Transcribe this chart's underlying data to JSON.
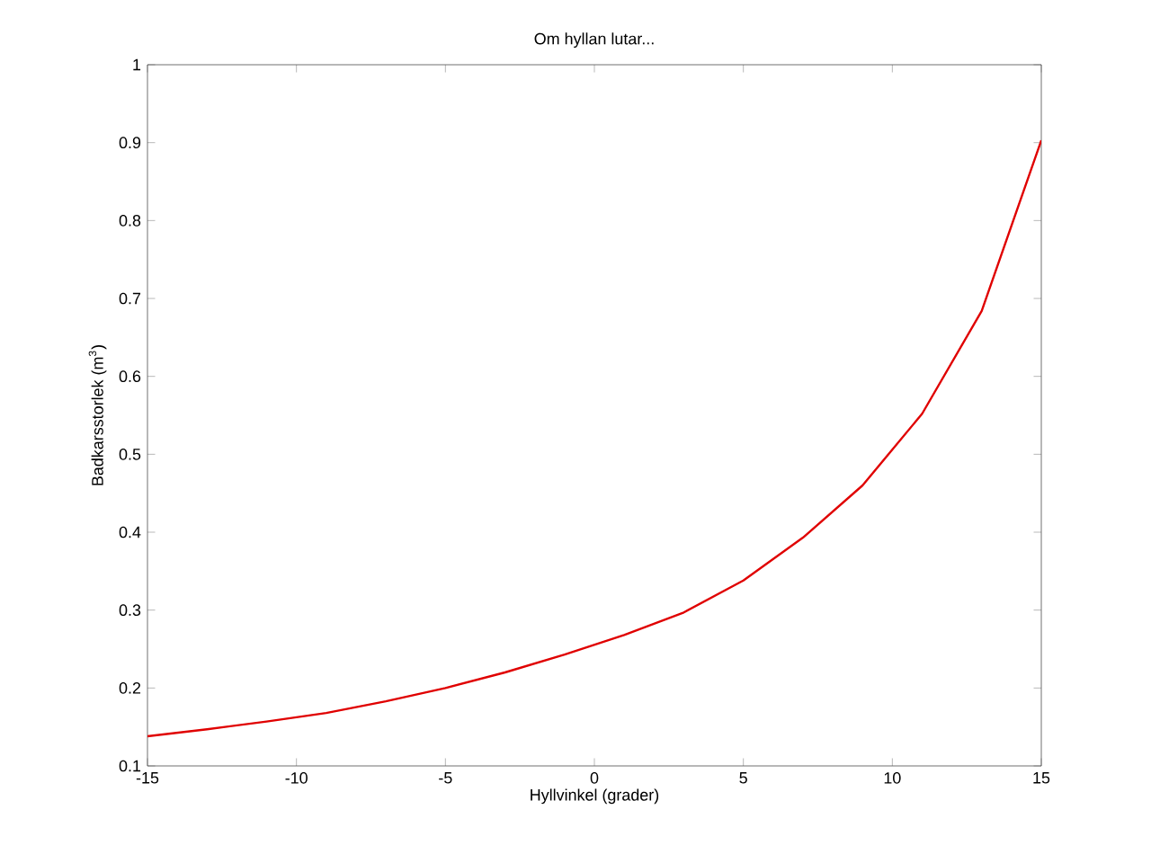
{
  "chart_data": {
    "type": "line",
    "title": "Om hyllan lutar...",
    "xlabel": "Hyllvinkel (grader)",
    "ylabel": "Badkarsstorlek (m$^{3}$)",
    "x": [
      -15,
      -13,
      -11,
      -9,
      -7,
      -5,
      -3,
      -1,
      1,
      3,
      5,
      7,
      9,
      11,
      13,
      15
    ],
    "series": [
      {
        "color": "#e00000",
        "values": [
          0.138,
          0.147,
          0.157,
          0.168,
          0.183,
          0.2,
          0.22,
          0.243,
          0.268,
          0.297,
          0.338,
          0.393,
          0.46,
          0.552,
          0.684,
          0.903
        ]
      }
    ],
    "xlim": [
      -15,
      15
    ],
    "ylim": [
      0.1,
      1
    ],
    "xticks": [
      -15,
      -10,
      -5,
      0,
      5,
      10,
      15
    ],
    "yticks": [
      0.1,
      0.2,
      0.3,
      0.4,
      0.5,
      0.6,
      0.7,
      0.8,
      0.9,
      1
    ],
    "grid": false,
    "marker": "none",
    "line_style": "solid"
  }
}
